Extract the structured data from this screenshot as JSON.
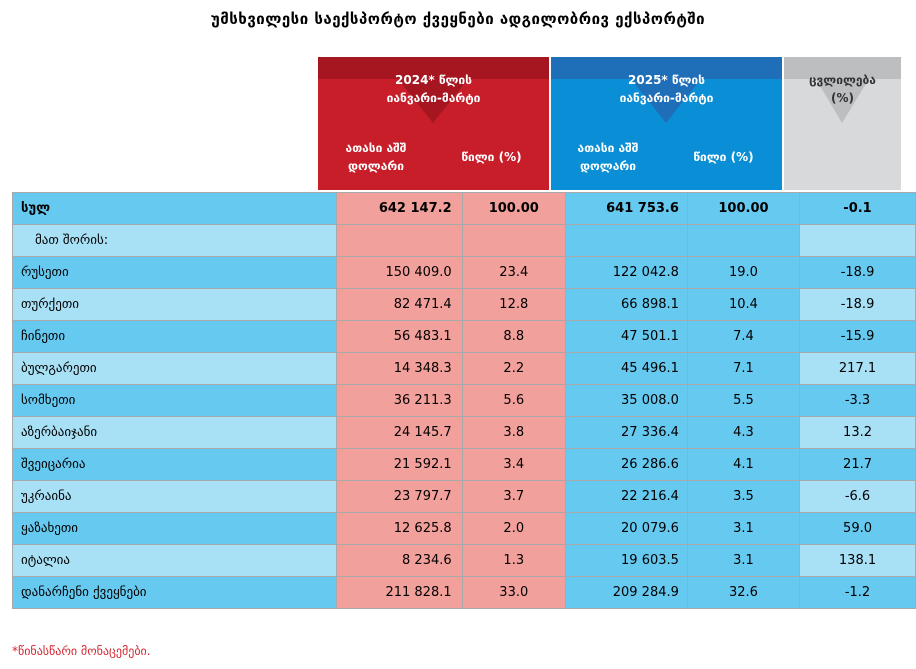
{
  "title": "უმსხვილესი საექსპორტო ქვეყნები ადგილობრივ ექსპორტში",
  "header": {
    "period_2024_line1": "2024* წლის",
    "period_2024_line2": "იანვარი-მარტი",
    "period_2025_line1": "2025* წლის",
    "period_2025_line2": "იანვარი-მარტი",
    "value_col_line1": "ათასი აშშ",
    "value_col_line2": "დოლარი",
    "share_col": "წილი (%)",
    "change_line1": "ცვლილება",
    "change_line2": "(%)"
  },
  "colors": {
    "red_header": "#c81e2a",
    "blue_header": "#0a8fd6",
    "grey_header": "#d7d9db",
    "red_cell": "#f2a09b",
    "blue_cell": "#66c9ef",
    "light_blue_cell": "#a8e0f6",
    "footnote": "#d22630"
  },
  "footnote": "*წინასწარი მონაცემები.",
  "chart_data": {
    "type": "table",
    "title": "უმსხვილესი საექსპორტო ქვეყნები ადგილობრივ ექსპორტში",
    "columns": [
      "2024* ათასი აშშ დოლარი",
      "2024* წილი (%)",
      "2025* ათასი აშშ დოლარი",
      "2025* წილი (%)",
      "ცვლილება (%)"
    ],
    "rows": [
      {
        "label": "სულ",
        "v2024": "642 147.2",
        "s2024": "100.00",
        "v2025": "641 753.6",
        "s2025": "100.00",
        "change": "-0.1"
      },
      {
        "label": "მათ შორის:",
        "v2024": "",
        "s2024": "",
        "v2025": "",
        "s2025": "",
        "change": ""
      },
      {
        "label": "რუსეთი",
        "v2024": "150 409.0",
        "s2024": "23.4",
        "v2025": "122 042.8",
        "s2025": "19.0",
        "change": "-18.9"
      },
      {
        "label": "თურქეთი",
        "v2024": "82 471.4",
        "s2024": "12.8",
        "v2025": "66 898.1",
        "s2025": "10.4",
        "change": "-18.9"
      },
      {
        "label": "ჩინეთი",
        "v2024": "56 483.1",
        "s2024": "8.8",
        "v2025": "47 501.1",
        "s2025": "7.4",
        "change": "-15.9"
      },
      {
        "label": "ბულგარეთი",
        "v2024": "14 348.3",
        "s2024": "2.2",
        "v2025": "45 496.1",
        "s2025": "7.1",
        "change": "217.1"
      },
      {
        "label": "სომხეთი",
        "v2024": "36 211.3",
        "s2024": "5.6",
        "v2025": "35 008.0",
        "s2025": "5.5",
        "change": "-3.3"
      },
      {
        "label": "აზერბაიჯანი",
        "v2024": "24 145.7",
        "s2024": "3.8",
        "v2025": "27 336.4",
        "s2025": "4.3",
        "change": "13.2"
      },
      {
        "label": "შვეიცარია",
        "v2024": "21 592.1",
        "s2024": "3.4",
        "v2025": "26 286.6",
        "s2025": "4.1",
        "change": "21.7"
      },
      {
        "label": "უკრაინა",
        "v2024": "23 797.7",
        "s2024": "3.7",
        "v2025": "22 216.4",
        "s2025": "3.5",
        "change": "-6.6"
      },
      {
        "label": "ყაზახეთი",
        "v2024": "12 625.8",
        "s2024": "2.0",
        "v2025": "20 079.6",
        "s2025": "3.1",
        "change": "59.0"
      },
      {
        "label": "იტალია",
        "v2024": "8 234.6",
        "s2024": "1.3",
        "v2025": "19 603.5",
        "s2025": "3.1",
        "change": "138.1"
      },
      {
        "label": "დანარჩენი ქვეყნები",
        "v2024": "211 828.1",
        "s2024": "33.0",
        "v2025": "209 284.9",
        "s2025": "32.6",
        "change": "-1.2"
      }
    ]
  }
}
